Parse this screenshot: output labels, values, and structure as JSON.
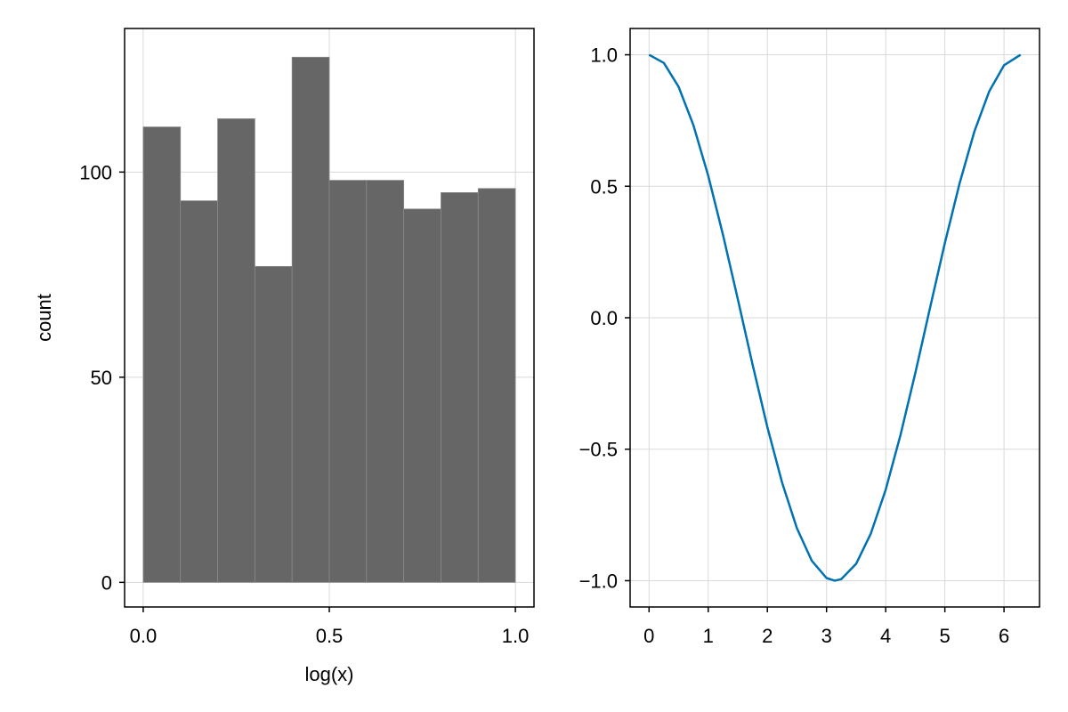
{
  "colors": {
    "background": "#ffffff",
    "frame": "#000000",
    "grid": "#d9d9d9",
    "bar_fill": "#666666",
    "bar_edge": "#8a8a8a",
    "line": "#0072b2"
  },
  "chart_data": [
    {
      "type": "bar",
      "histogram": true,
      "xlabel": "log(x)",
      "ylabel": "count",
      "xlim": [
        -0.05,
        1.05
      ],
      "ylim": [
        -6,
        135
      ],
      "grid": true,
      "x_ticks": [
        0,
        0.5,
        1
      ],
      "x_tick_labels": [
        "0.0",
        "0.5",
        "1.0"
      ],
      "y_ticks": [
        0,
        50,
        100
      ],
      "y_tick_labels": [
        "0",
        "50",
        "100"
      ],
      "bin_edges": [
        0.0,
        0.1,
        0.2,
        0.3,
        0.4,
        0.5,
        0.6,
        0.7,
        0.8,
        0.9,
        1.0
      ],
      "values": [
        111,
        93,
        113,
        77,
        128,
        98,
        98,
        91,
        95,
        96
      ]
    },
    {
      "type": "line",
      "xlabel": "",
      "ylabel": "",
      "xlim": [
        -0.32,
        6.6
      ],
      "ylim": [
        -1.1,
        1.1
      ],
      "grid": true,
      "x_ticks": [
        0,
        1,
        2,
        3,
        4,
        5,
        6
      ],
      "x_tick_labels": [
        "0",
        "1",
        "2",
        "3",
        "4",
        "5",
        "6"
      ],
      "y_ticks": [
        -1,
        -0.5,
        0,
        0.5,
        1
      ],
      "y_tick_labels": [
        "−1.0",
        "−0.5",
        "0.0",
        "0.5",
        "1.0"
      ],
      "series": [
        {
          "x": [
            0,
            0.25,
            0.5,
            0.75,
            1,
            1.25,
            1.5,
            1.75,
            2,
            2.25,
            2.5,
            2.75,
            3,
            3.14,
            3.25,
            3.5,
            3.75,
            4,
            4.25,
            4.5,
            4.75,
            5,
            5.25,
            5.5,
            5.75,
            6,
            6.28
          ],
          "y": [
            1,
            0.969,
            0.878,
            0.732,
            0.54,
            0.315,
            0.071,
            -0.178,
            -0.416,
            -0.628,
            -0.801,
            -0.924,
            -0.99,
            -1,
            -0.994,
            -0.936,
            -0.82,
            -0.654,
            -0.446,
            -0.211,
            0.038,
            0.284,
            0.512,
            0.709,
            0.861,
            0.96,
            1
          ]
        }
      ]
    }
  ]
}
